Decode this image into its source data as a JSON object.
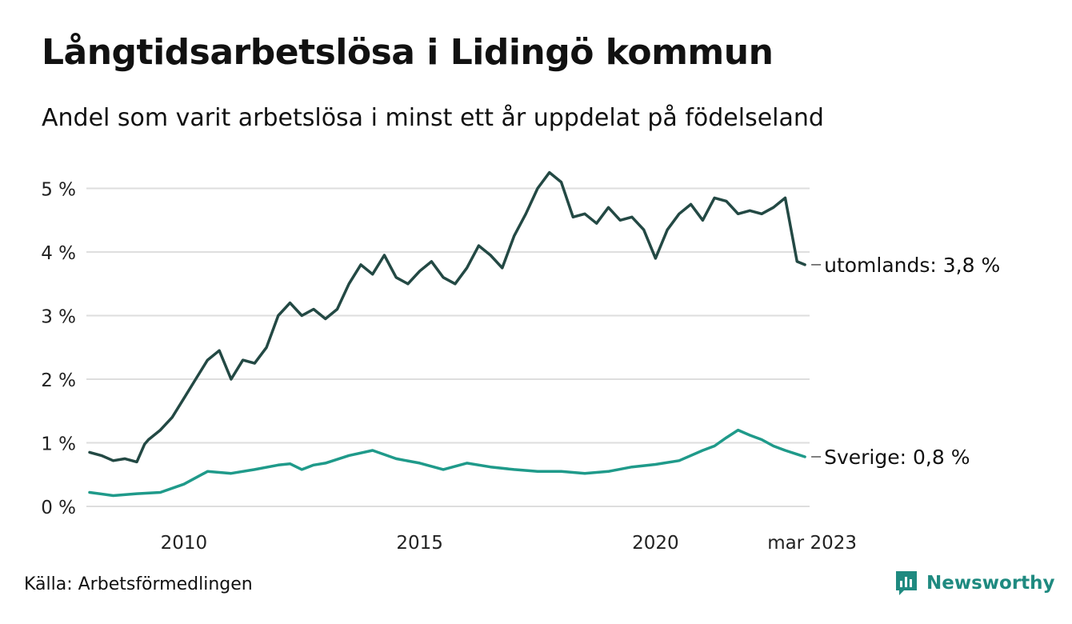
{
  "title": "Långtidsarbetslösa i Lidingö kommun",
  "subtitle": "Andel som varit arbetslösa i minst ett år uppdelat på födelseland",
  "source": "Källa: Arbetsförmedlingen",
  "brand": "Newsworthy",
  "colors": {
    "utomlands": "#234944",
    "sverige": "#1f9a8a",
    "grid": "#dedede",
    "brand": "#1f8a80"
  },
  "chart_data": {
    "type": "line",
    "title": "Långtidsarbetslösa i Lidingö kommun",
    "ylabel": "",
    "xlabel": "",
    "ylim": [
      0,
      5.3
    ],
    "xlim": [
      "2008-01",
      "2023-03"
    ],
    "y_ticks": [
      0,
      1,
      2,
      3,
      4,
      5
    ],
    "y_tick_labels": [
      "0 %",
      "1 %",
      "2 %",
      "3 %",
      "4 %",
      "5 %"
    ],
    "x_ticks": [
      "2010-01",
      "2015-01",
      "2020-01",
      "2023-03"
    ],
    "x_tick_labels": [
      "2010",
      "2015",
      "2020",
      "mar 2023"
    ],
    "grid": "horizontal",
    "series": [
      {
        "name": "utomlands",
        "end_label": "utomlands: 3,8 %",
        "x": [
          "2008-01",
          "2008-04",
          "2008-07",
          "2008-10",
          "2009-01",
          "2009-03",
          "2009-04",
          "2009-07",
          "2009-10",
          "2010-01",
          "2010-04",
          "2010-07",
          "2010-10",
          "2011-01",
          "2011-04",
          "2011-07",
          "2011-10",
          "2012-01",
          "2012-04",
          "2012-07",
          "2012-10",
          "2013-01",
          "2013-04",
          "2013-07",
          "2013-10",
          "2014-01",
          "2014-04",
          "2014-07",
          "2014-10",
          "2015-01",
          "2015-04",
          "2015-07",
          "2015-10",
          "2016-01",
          "2016-04",
          "2016-07",
          "2016-10",
          "2017-01",
          "2017-04",
          "2017-07",
          "2017-10",
          "2018-01",
          "2018-04",
          "2018-07",
          "2018-10",
          "2019-01",
          "2019-04",
          "2019-07",
          "2019-10",
          "2020-01",
          "2020-04",
          "2020-07",
          "2020-10",
          "2021-01",
          "2021-04",
          "2021-07",
          "2021-10",
          "2022-01",
          "2022-04",
          "2022-07",
          "2022-10",
          "2023-01",
          "2023-03"
        ],
        "y": [
          0.85,
          0.8,
          0.72,
          0.75,
          0.7,
          0.98,
          1.05,
          1.2,
          1.4,
          1.7,
          2.0,
          2.3,
          2.45,
          2.0,
          2.3,
          2.25,
          2.5,
          3.0,
          3.2,
          3.0,
          3.1,
          2.95,
          3.1,
          3.5,
          3.8,
          3.65,
          3.95,
          3.6,
          3.5,
          3.7,
          3.85,
          3.6,
          3.5,
          3.75,
          4.1,
          3.95,
          3.75,
          4.25,
          4.6,
          5.0,
          5.25,
          5.1,
          4.55,
          4.6,
          4.45,
          4.7,
          4.5,
          4.55,
          4.35,
          3.9,
          4.35,
          4.6,
          4.75,
          4.5,
          4.85,
          4.8,
          4.6,
          4.65,
          4.6,
          4.7,
          4.85,
          3.85,
          3.8
        ]
      },
      {
        "name": "Sverige",
        "end_label": "Sverige: 0,8 %",
        "x": [
          "2008-01",
          "2008-07",
          "2009-01",
          "2009-07",
          "2010-01",
          "2010-07",
          "2011-01",
          "2011-07",
          "2012-01",
          "2012-04",
          "2012-07",
          "2012-10",
          "2013-01",
          "2013-07",
          "2014-01",
          "2014-07",
          "2015-01",
          "2015-07",
          "2016-01",
          "2016-07",
          "2017-01",
          "2017-07",
          "2018-01",
          "2018-07",
          "2019-01",
          "2019-07",
          "2020-01",
          "2020-07",
          "2021-01",
          "2021-04",
          "2021-07",
          "2021-10",
          "2022-01",
          "2022-04",
          "2022-07",
          "2022-10",
          "2023-01",
          "2023-03"
        ],
        "y": [
          0.22,
          0.17,
          0.2,
          0.22,
          0.35,
          0.55,
          0.52,
          0.58,
          0.65,
          0.67,
          0.58,
          0.65,
          0.68,
          0.8,
          0.88,
          0.75,
          0.68,
          0.58,
          0.68,
          0.62,
          0.58,
          0.55,
          0.55,
          0.52,
          0.55,
          0.62,
          0.66,
          0.72,
          0.88,
          0.95,
          1.08,
          1.2,
          1.12,
          1.05,
          0.95,
          0.88,
          0.82,
          0.78
        ]
      }
    ]
  }
}
